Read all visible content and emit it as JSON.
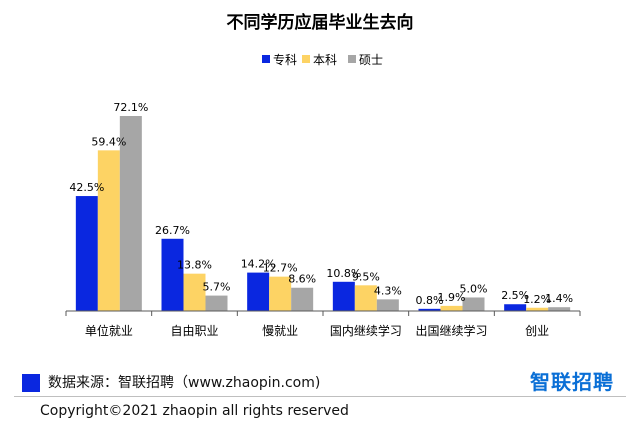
{
  "chart_data": {
    "type": "bar",
    "title": "不同学历应届毕业生去向",
    "categories": [
      "单位就业",
      "自由职业",
      "慢就业",
      "国内继续学习",
      "出国继续学习",
      "创业"
    ],
    "series": [
      {
        "name": "专科",
        "values": [
          42.5,
          26.7,
          14.2,
          10.8,
          0.8,
          2.5
        ],
        "labels": [
          "42.5%",
          "26.7%",
          "14.2%",
          "10.8%",
          "0.8%",
          "2.5%"
        ]
      },
      {
        "name": "本科",
        "values": [
          59.4,
          13.8,
          12.7,
          9.5,
          1.9,
          1.2
        ],
        "labels": [
          "59.4%",
          "13.8%",
          "12.7%",
          "9.5%",
          "1.9%",
          "1.2%"
        ]
      },
      {
        "name": "硕士",
        "values": [
          72.1,
          5.7,
          8.6,
          4.3,
          5.0,
          1.4
        ],
        "labels": [
          "72.1%",
          "5.7%",
          "8.6%",
          "4.3%",
          "5.0%",
          "1.4%"
        ]
      }
    ],
    "ylim": [
      0,
      75
    ],
    "legend": "top-center",
    "grid": false
  },
  "colors": {
    "专科": "#0a27e0",
    "本科": "#fdd364",
    "硕士": "#a6a6a6"
  },
  "footer": {
    "source": "数据来源：智联招聘（www.zhaopin.com)",
    "logo": "智联招聘",
    "copyright": "Copyright©2021 zhaopin all rights reserved"
  }
}
